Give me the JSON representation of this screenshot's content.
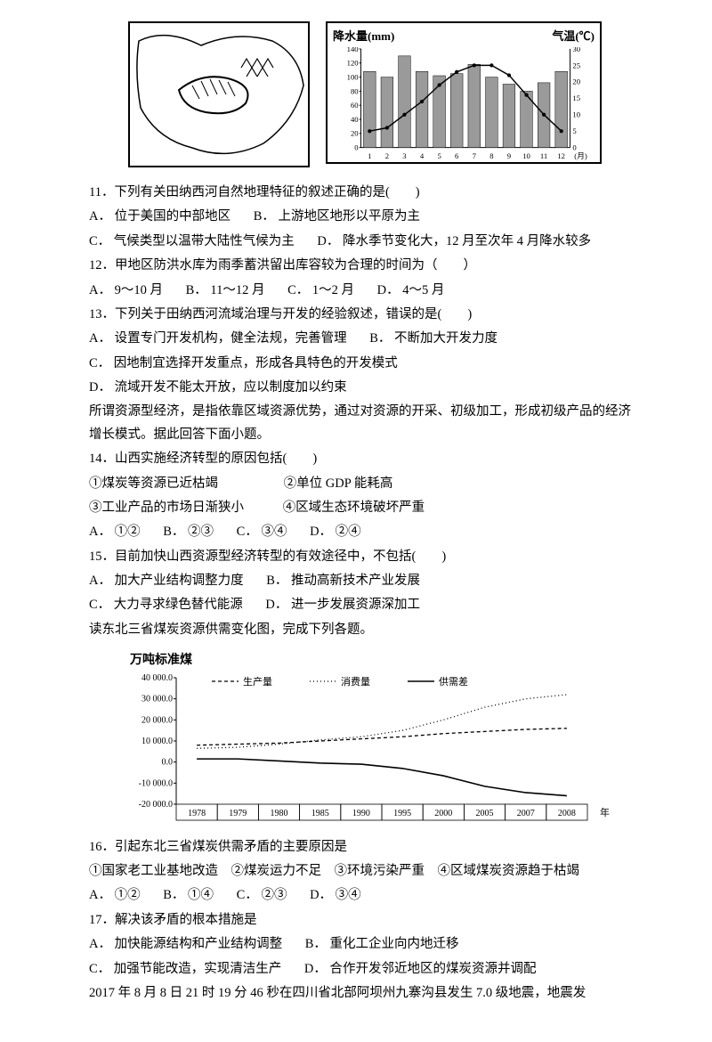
{
  "climate_chart": {
    "title_left": "降水量(mm)",
    "title_right": "气温(℃)",
    "y_precip_ticks": [
      0,
      20,
      40,
      60,
      80,
      100,
      120,
      140
    ],
    "y_temp_ticks": [
      0,
      5,
      10,
      15,
      20,
      25,
      30
    ],
    "x_labels": [
      "1",
      "2",
      "3",
      "4",
      "5",
      "6",
      "7",
      "8",
      "9",
      "10",
      "11",
      "12"
    ],
    "x_axis_label": "(月)",
    "precip": [
      108,
      100,
      130,
      108,
      102,
      105,
      118,
      100,
      90,
      80,
      92,
      108
    ],
    "temp": [
      5,
      6,
      10,
      14,
      19,
      23,
      25,
      25,
      22,
      16,
      10,
      5
    ],
    "bar_color": "#9a9a9a",
    "line_color": "#000000"
  },
  "q11": {
    "stem": "11．下列有关田纳西河自然地理特征的叙述正确的是(　　)",
    "A": "A．  位于美国的中部地区",
    "B": "B．  上游地区地形以平原为主",
    "C": "C．  气候类型以温带大陆性气候为主",
    "D": "D．  降水季节变化大，12 月至次年 4 月降水较多"
  },
  "q12": {
    "stem": "12．甲地区防洪水库为雨季蓄洪留出库容较为合理的时间为（　　）",
    "A": "A．  9～10 月",
    "B": "B．  11～12 月",
    "C": "C．  1～2 月",
    "D": "D．  4～5 月"
  },
  "q13": {
    "stem": "13．下列关于田纳西河流域治理与开发的经验叙述，错误的是(　　)",
    "A": "A．  设置专门开发机构，健全法规，完善管理",
    "B": "B．  不断加大开发力度",
    "C": "C．  因地制宜选择开发重点，形成各具特色的开发模式",
    "D": "D．  流域开发不能太开放，应以制度加以约束"
  },
  "passage1": "所谓资源型经济，是指依靠区域资源优势，通过对资源的开采、初级加工，形成初级产品的经济增长模式。据此回答下面小题。",
  "q14": {
    "stem": "14．山西实施经济转型的原因包括(　　)",
    "l1": "①煤炭等资源已近枯竭",
    "l2": "②单位 GDP 能耗高",
    "l3": "③工业产品的市场日渐狭小",
    "l4": "④区域生态环境破坏严重",
    "A": "A．  ①②",
    "B": "B．  ②③",
    "C": "C．  ③④",
    "D": "D．  ②④"
  },
  "q15": {
    "stem": "15．目前加快山西资源型经济转型的有效途径中，不包括(　　)",
    "A": "A．  加大产业结构调整力度",
    "B": "B．  推动高新技术产业发展",
    "C": "C．  大力寻求绿色替代能源",
    "D": "D．  进一步发展资源深加工"
  },
  "passage2": "读东北三省煤炭资源供需变化图，完成下列各题。",
  "fig2": {
    "y_label": "万吨标准煤",
    "y_ticks": [
      "40 000.0",
      "30 000.0",
      "20 000.0",
      "10 000.0",
      "0.0",
      "-10 000.0",
      "-20 000.0"
    ],
    "x_ticks": [
      "1978",
      "1979",
      "1980",
      "1985",
      "1990",
      "1995",
      "2000",
      "2005",
      "2007",
      "2008"
    ],
    "x_suffix": "年",
    "legend": [
      "生产量",
      "消费量",
      "供需差"
    ],
    "production": [
      8000,
      8500,
      9000,
      10000,
      11000,
      12000,
      13500,
      14500,
      15500,
      16000
    ],
    "consumption": [
      6500,
      7000,
      8500,
      10500,
      12000,
      15000,
      20000,
      26000,
      30000,
      32000
    ],
    "diff": [
      1500,
      1500,
      500,
      -500,
      -1000,
      -3000,
      -6500,
      -11500,
      -14500,
      -16000
    ],
    "ymin": -20000,
    "ymax": 40000
  },
  "q16": {
    "stem": "16．引起东北三省煤炭供需矛盾的主要原因是",
    "lines": "①国家老工业基地改造　②煤炭运力不足　③环境污染严重　④区域煤炭资源趋于枯竭",
    "A": "A．  ①②",
    "B": "B．  ①④",
    "C": "C．  ②③",
    "D": "D．  ③④"
  },
  "q17": {
    "stem": "17．解决该矛盾的根本措施是",
    "A": "A．  加快能源结构和产业结构调整",
    "B": "B．  重化工企业向内地迁移",
    "C": "C．  加强节能改造，实现清洁生产",
    "D": "D．  合作开发邻近地区的煤炭资源并调配"
  },
  "passage3": "2017 年 8 月 8 日 21 时 19 分 46 秒在四川省北部阿坝州九寨沟县发生 7.0 级地震，地震发"
}
